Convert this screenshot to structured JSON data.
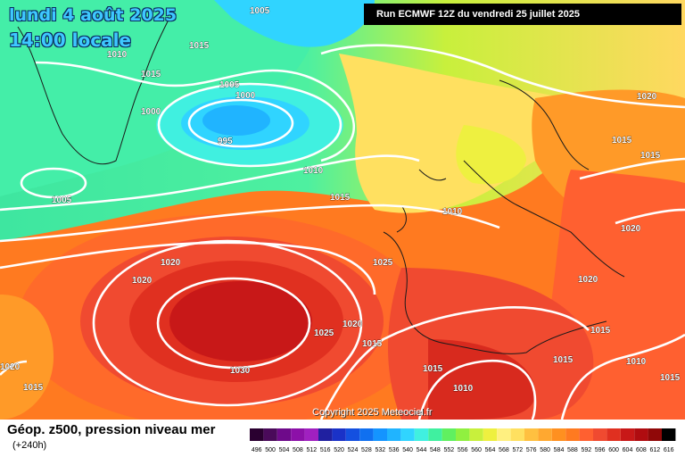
{
  "header": {
    "date": "lundi 4 août 2025",
    "time": "14:00 locale",
    "run": "Run ECMWF 12Z du vendredi 25 juillet 2025"
  },
  "footer": {
    "title": "Géop. z500, pression niveau mer",
    "lead": "(+240h)",
    "copyright": "Copyright 2025 Meteociel.fr"
  },
  "isobar_labels": [
    "1005",
    "1010",
    "1015",
    "1005",
    "1000",
    "1000",
    "995",
    "1015",
    "1010",
    "1005",
    "1015",
    "1020",
    "1015",
    "1015",
    "1010",
    "1020",
    "1020",
    "1020",
    "1025",
    "1020",
    "1020",
    "1025",
    "1015",
    "1030",
    "1020",
    "1015",
    "1015",
    "1010",
    "1015",
    "1010",
    "1015",
    "1015"
  ],
  "legend": {
    "values": [
      "496",
      "500",
      "504",
      "508",
      "512",
      "516",
      "520",
      "524",
      "528",
      "532",
      "536",
      "540",
      "544",
      "548",
      "552",
      "556",
      "560",
      "564",
      "568",
      "572",
      "576",
      "580",
      "584",
      "588",
      "592",
      "596",
      "600",
      "604",
      "608",
      "612",
      "616"
    ],
    "colors": [
      "#2a0030",
      "#4a0a5a",
      "#6e0a8a",
      "#8c10a8",
      "#a020c0",
      "#2020a0",
      "#1a32c8",
      "#1450e0",
      "#1070f0",
      "#1494ff",
      "#20b4ff",
      "#30d4ff",
      "#40f0e0",
      "#40f0a0",
      "#60f060",
      "#90f040",
      "#c8f03c",
      "#eef040",
      "#fff080",
      "#ffe060",
      "#ffc040",
      "#ffa830",
      "#ff9020",
      "#ff7a20",
      "#ff6030",
      "#f04a30",
      "#e03020",
      "#c81818",
      "#b00c10",
      "#900808",
      "#000000"
    ]
  },
  "colors": {
    "cyan_title": "#3ec8ff",
    "isobar": "#ffffff"
  }
}
